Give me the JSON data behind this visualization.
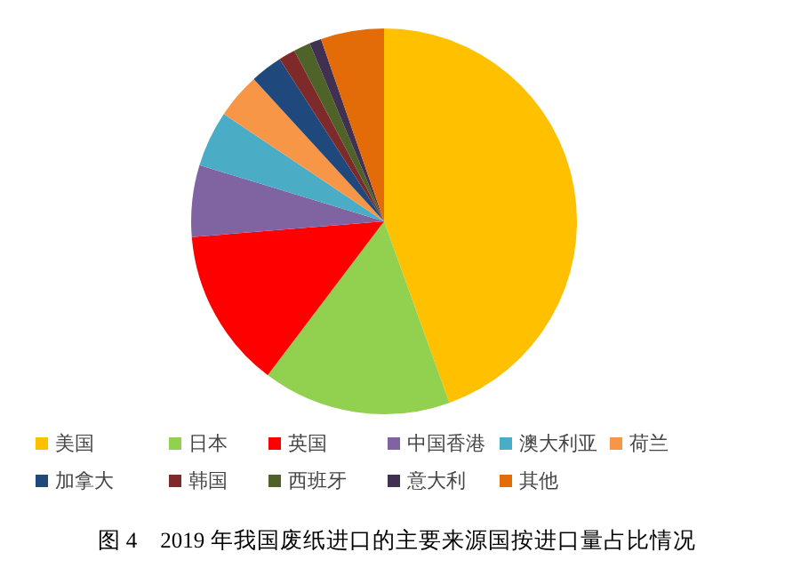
{
  "chart_data": {
    "type": "pie",
    "title": "图 4　2019 年我国废纸进口的主要来源国按进口量占比情况",
    "categories": [
      "美国",
      "日本",
      "英国",
      "中国香港",
      "澳大利亚",
      "荷兰",
      "加拿大",
      "韩国",
      "西班牙",
      "意大利",
      "其他"
    ],
    "values": [
      44.5,
      15.8,
      13.4,
      6.0,
      4.7,
      3.8,
      2.7,
      1.4,
      1.4,
      1.0,
      5.3
    ],
    "colors": [
      "#ffc000",
      "#92d050",
      "#ff0000",
      "#8064a2",
      "#4bacc6",
      "#f79646",
      "#1f497d",
      "#7f2a2a",
      "#4f6228",
      "#403152",
      "#e36c09"
    ],
    "legend": "bottom"
  }
}
